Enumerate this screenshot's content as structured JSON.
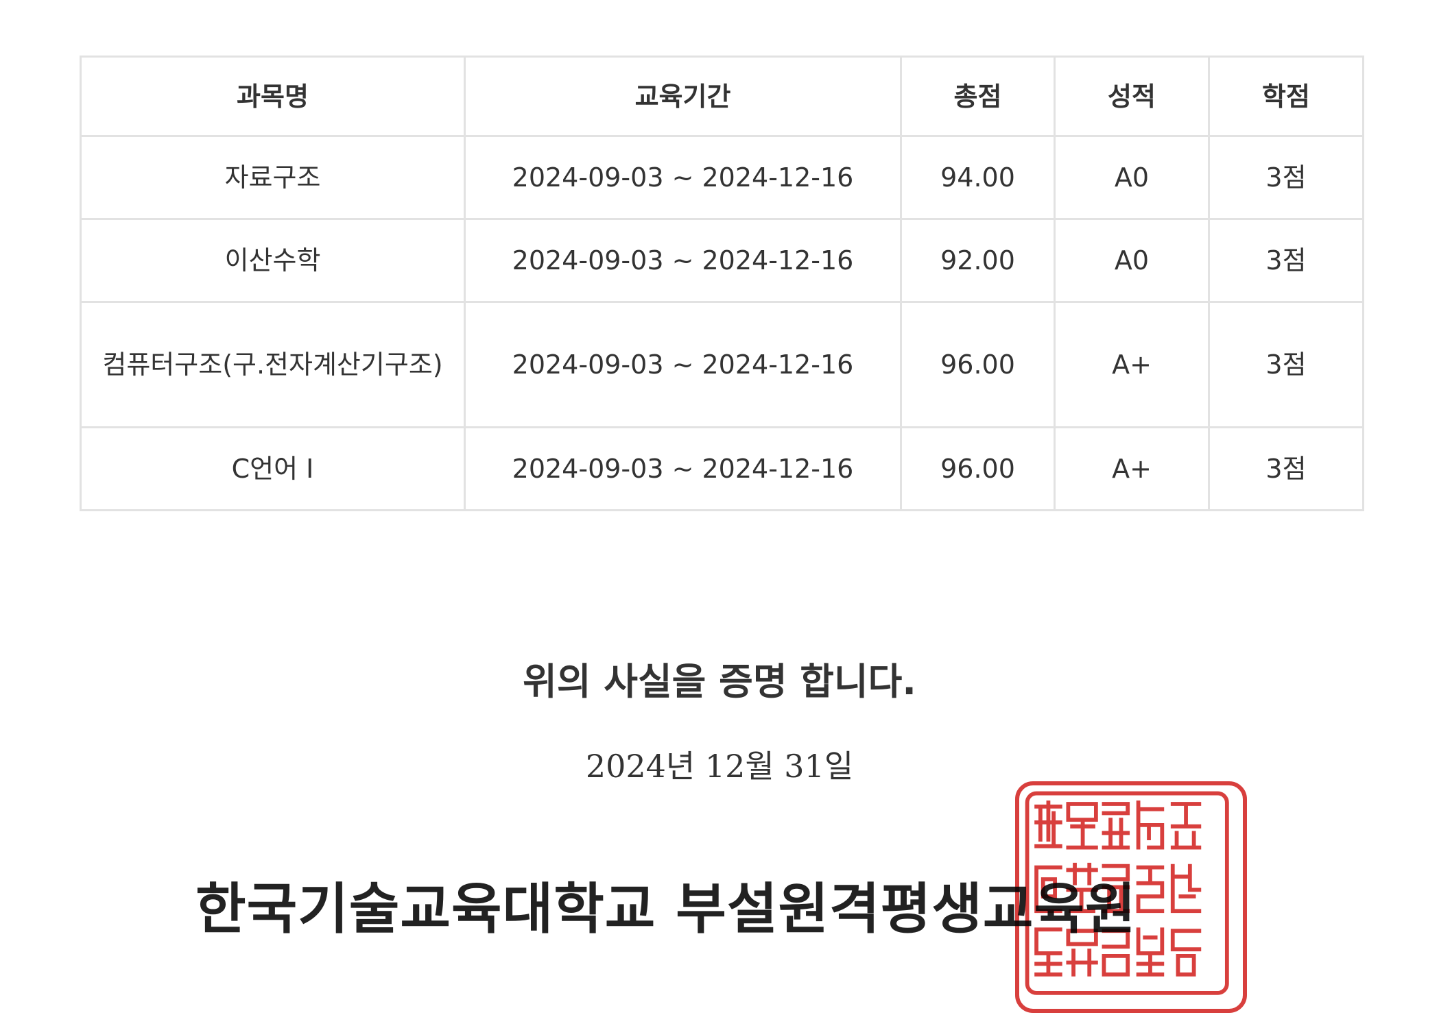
{
  "table": {
    "headers": [
      "과목명",
      "교육기간",
      "총점",
      "성적",
      "학점"
    ],
    "rows": [
      [
        "자료구조",
        "2024-09-03 ~ 2024-12-16",
        "94.00",
        "A0",
        "3점"
      ],
      [
        "이산수학",
        "2024-09-03 ~ 2024-12-16",
        "92.00",
        "A0",
        "3점"
      ],
      [
        "컴퓨터구조(구.전자계산기구조)",
        "2024-09-03 ~ 2024-12-16",
        "96.00",
        "A+",
        "3점"
      ],
      [
        "C언어 I",
        "2024-09-03 ~ 2024-12-16",
        "96.00",
        "A+",
        "3점"
      ]
    ]
  },
  "statement": "위의 사실을 증명 합니다.",
  "issue_date": "2024년 12월 31일",
  "institution": "한국기술교육대학교 부설원격평생교육원",
  "seal": {
    "color": "#d42a27",
    "text": "한국기술교육대학교부설원격평생교육원장인"
  },
  "colors": {
    "text": "#333333",
    "border": "#e2e2e2",
    "seal": "#d42a27"
  }
}
